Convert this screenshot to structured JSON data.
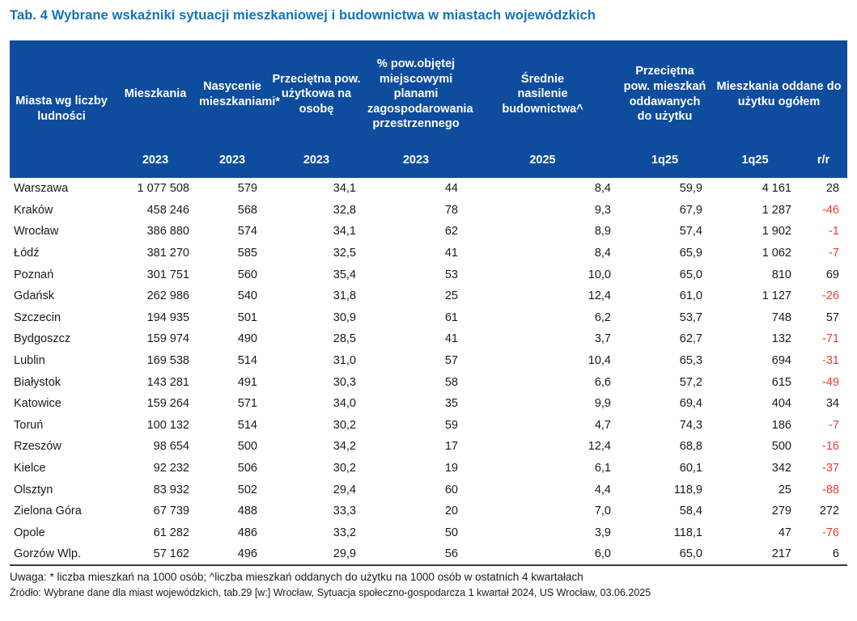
{
  "title": "Tab. 4 Wybrane wskaźniki sytuacji mieszkaniowej i budownictwa w miastach wojewódzkich",
  "colors": {
    "header_bg": "#0E4C9E",
    "title_color": "#1273B9",
    "negative": "#EE3B35",
    "text": "#1A1A1A",
    "rule": "#3B3B3B"
  },
  "table": {
    "city_header": "Miasta wg liczby\nludności",
    "columns": [
      {
        "label": "Mieszkania",
        "period": "2023"
      },
      {
        "label": "Nasycenie\nmieszkaniami*",
        "period": "2023"
      },
      {
        "label": "Przeciętna pow.\nużytkowa na\nosobę",
        "period": "2023"
      },
      {
        "label": "% pow.objętej\nmiejscowymi\nplanami\nzagospodarowania\nprzestrzennego",
        "period": "2023"
      },
      {
        "label": "Średnie\nnasilenie\nbudownictwa^",
        "period": "2025"
      },
      {
        "label": "Przeciętna\npow. mieszkań\noddawanych\ndo użytku",
        "period": "1q25"
      }
    ],
    "group_column": {
      "label": "Mieszkania oddane do\nużytku ogółem",
      "periods": [
        "1q25",
        "r/r"
      ]
    },
    "rows": [
      [
        "Warszawa",
        "1 077 508",
        "579",
        "34,1",
        "44",
        "8,4",
        "59,9",
        "4 161",
        "28"
      ],
      [
        "Kraków",
        "458 246",
        "568",
        "32,8",
        "78",
        "9,3",
        "67,9",
        "1 287",
        "-46"
      ],
      [
        "Wrocław",
        "386 880",
        "574",
        "34,1",
        "62",
        "8,9",
        "57,4",
        "1 902",
        "-1"
      ],
      [
        "Łódź",
        "381 270",
        "585",
        "32,5",
        "41",
        "8,4",
        "65,9",
        "1 062",
        "-7"
      ],
      [
        "Poznań",
        "301 751",
        "560",
        "35,4",
        "53",
        "10,0",
        "65,0",
        "810",
        "69"
      ],
      [
        "Gdańsk",
        "262 986",
        "540",
        "31,8",
        "25",
        "12,4",
        "61,0",
        "1 127",
        "-26"
      ],
      [
        "Szczecin",
        "194 935",
        "501",
        "30,9",
        "61",
        "6,2",
        "53,7",
        "748",
        "57"
      ],
      [
        "Bydgoszcz",
        "159 974",
        "490",
        "28,5",
        "41",
        "3,7",
        "62,7",
        "132",
        "-71"
      ],
      [
        "Lublin",
        "169 538",
        "514",
        "31,0",
        "57",
        "10,4",
        "65,3",
        "694",
        "-31"
      ],
      [
        "Białystok",
        "143 281",
        "491",
        "30,3",
        "58",
        "6,6",
        "57,2",
        "615",
        "-49"
      ],
      [
        "Katowice",
        "159 264",
        "571",
        "34,0",
        "35",
        "9,9",
        "69,4",
        "404",
        "34"
      ],
      [
        "Toruń",
        "100 132",
        "514",
        "30,2",
        "59",
        "4,7",
        "74,3",
        "186",
        "-7"
      ],
      [
        "Rzeszów",
        "98 654",
        "500",
        "34,2",
        "17",
        "12,4",
        "68,8",
        "500",
        "-16"
      ],
      [
        "Kielce",
        "92 232",
        "506",
        "30,2",
        "19",
        "6,1",
        "60,1",
        "342",
        "-37"
      ],
      [
        "Olsztyn",
        "83 932",
        "502",
        "29,4",
        "60",
        "4,4",
        "118,9",
        "25",
        "-88"
      ],
      [
        "Zielona Góra",
        "67 739",
        "488",
        "33,3",
        "20",
        "7,0",
        "58,4",
        "279",
        "272"
      ],
      [
        "Opole",
        "61 282",
        "486",
        "33,2",
        "50",
        "3,9",
        "118,1",
        "47",
        "-76"
      ],
      [
        "Gorzów Wlp.",
        "57 162",
        "496",
        "29,9",
        "56",
        "6,0",
        "65,0",
        "217",
        "6"
      ]
    ]
  },
  "notes": {
    "uwaga": "Uwaga: * liczba mieszkań na 1000 osób; ^liczba mieszkań oddanych do użytku na 1000 osób w ostatnich 4 kwartałach",
    "zrodlo": "Źródło: Wybrane dane dla miast wojewódzkich, tab.29 [w:] Wrocław, Sytuacja społeczno-gospodarcza 1 kwartał 2024, US Wrocław, 03.06.2025"
  }
}
